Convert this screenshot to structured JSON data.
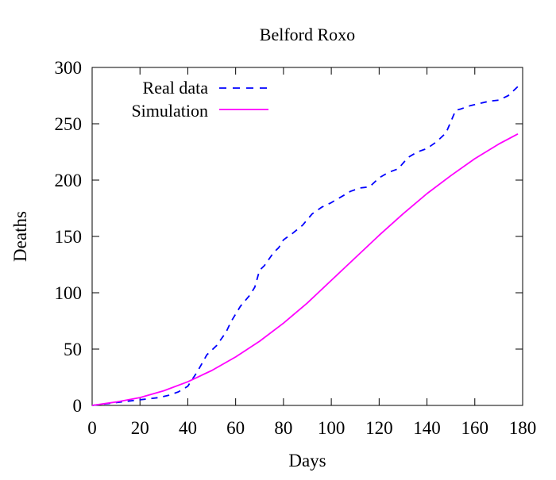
{
  "chart_data": {
    "type": "line",
    "title": "Belford Roxo",
    "xlabel": "Days",
    "ylabel": "Deaths",
    "xlim": [
      0,
      180
    ],
    "ylim": [
      0,
      300
    ],
    "xticks": [
      0,
      20,
      40,
      60,
      80,
      100,
      120,
      140,
      160,
      180
    ],
    "yticks": [
      0,
      50,
      100,
      150,
      200,
      250,
      300
    ],
    "grid": false,
    "legend_position": "top-left",
    "series": [
      {
        "name": "Real data",
        "style": "dashed",
        "color": "#0000ff",
        "x": [
          0,
          4,
          8,
          12,
          16,
          20,
          24,
          28,
          32,
          36,
          40,
          44,
          48,
          52,
          56,
          58,
          62,
          66,
          68,
          70,
          72,
          74,
          76,
          78,
          80,
          84,
          88,
          90,
          92,
          96,
          100,
          104,
          108,
          112,
          116,
          120,
          124,
          128,
          132,
          136,
          140,
          144,
          148,
          152,
          154,
          158,
          162,
          166,
          170,
          174,
          178
        ],
        "y": [
          0,
          1,
          2,
          3,
          4,
          5,
          6,
          7,
          9,
          12,
          17,
          30,
          45,
          53,
          65,
          74,
          88,
          98,
          105,
          120,
          124,
          130,
          136,
          140,
          147,
          153,
          160,
          165,
          170,
          176,
          180,
          185,
          190,
          193,
          194,
          202,
          207,
          210,
          220,
          225,
          228,
          234,
          242,
          262,
          263,
          266,
          268,
          270,
          271,
          275,
          283
        ]
      },
      {
        "name": "Simulation",
        "style": "solid",
        "color": "#ff00ff",
        "x": [
          0,
          10,
          20,
          30,
          40,
          50,
          60,
          70,
          80,
          90,
          100,
          110,
          120,
          130,
          140,
          150,
          160,
          170,
          178
        ],
        "y": [
          0,
          3,
          7,
          13,
          21,
          31,
          43,
          57,
          73,
          91,
          111,
          131,
          151,
          170,
          188,
          204,
          219,
          232,
          241
        ]
      }
    ]
  }
}
